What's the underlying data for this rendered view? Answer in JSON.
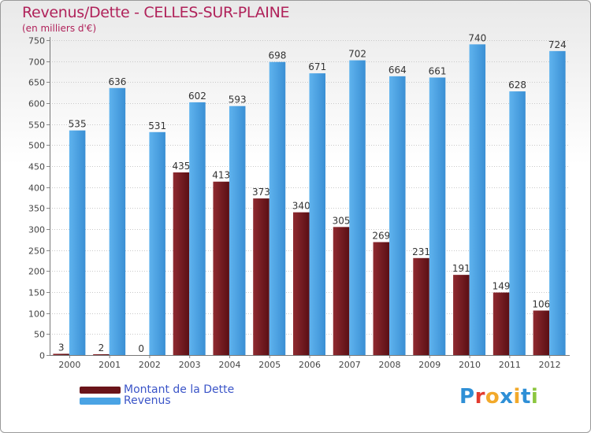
{
  "colors": {
    "dette": "#7a1c22",
    "revenus": "#4aa3e4",
    "title": "#b0225a",
    "legend_text": "#3b55c8",
    "logo": [
      "#2e8fd6",
      "#e23b2e",
      "#f2a92a",
      "#2e8fd6",
      "#f2a92a",
      "#2e8fd6",
      "#8cc63f"
    ]
  },
  "logo_text": "Proxiti",
  "chart_data": {
    "type": "bar",
    "title": "Revenus/Dette - CELLES-SUR-PLAINE",
    "subtitle": "(en milliers d'€)",
    "categories": [
      "2000",
      "2001",
      "2002",
      "2003",
      "2004",
      "2005",
      "2006",
      "2007",
      "2008",
      "2009",
      "2010",
      "2011",
      "2012"
    ],
    "series": [
      {
        "name": "Montant de la Dette",
        "values": [
          3,
          2,
          0,
          435,
          413,
          373,
          340,
          305,
          269,
          231,
          191,
          149,
          106
        ]
      },
      {
        "name": "Revenus",
        "values": [
          535,
          636,
          531,
          602,
          593,
          698,
          671,
          702,
          664,
          661,
          740,
          628,
          724
        ]
      }
    ],
    "ylim": [
      0,
      750
    ],
    "yticks": [
      0,
      50,
      100,
      150,
      200,
      250,
      300,
      350,
      400,
      450,
      500,
      550,
      600,
      650,
      700,
      750
    ],
    "grid": true,
    "legend": "bottom-left"
  }
}
